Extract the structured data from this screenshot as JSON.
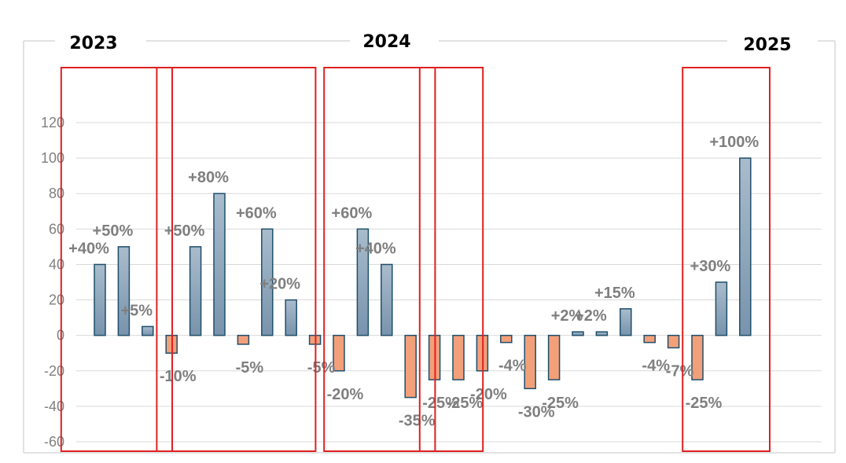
{
  "chart_data": {
    "type": "bar",
    "title": "",
    "xlabel": "",
    "ylabel": "",
    "ylim": [
      -60,
      120
    ],
    "yticks": [
      120,
      100,
      80,
      60,
      40,
      20,
      0,
      -20,
      -40,
      -60
    ],
    "grid": true,
    "values": [
      40,
      50,
      5,
      -10,
      50,
      80,
      -5,
      60,
      20,
      -5,
      -20,
      60,
      40,
      -35,
      -25,
      -25,
      -20,
      -4,
      -30,
      -25,
      2,
      2,
      15,
      -4,
      -7,
      -25,
      30,
      100
    ],
    "labels": [
      "+40%",
      "+50%",
      "+5%",
      "-10%",
      "+50%",
      "+80%",
      "-5%",
      "+60%",
      "+20%",
      "-5%",
      "-20%",
      "+60%",
      "+40%",
      "-35%",
      "-25%",
      "-25%",
      "-20%",
      "-4%",
      "-30%",
      "-25%",
      "+2%",
      "+2%",
      "+15%",
      "-4%",
      "-7%",
      "-25%",
      "+30%",
      "+100%"
    ],
    "year_labels": [
      "2023",
      "2024",
      "2025"
    ],
    "highlight_groups": [
      [
        0,
        2
      ],
      [
        4,
        8
      ],
      [
        11,
        13
      ],
      [
        15,
        15
      ],
      [
        26,
        27
      ]
    ]
  },
  "colors": {
    "positive_fill": "#8fa8be",
    "positive_stroke": "#1f4e6b",
    "negative_fill": "#f2a07a",
    "negative_stroke": "#1f4e6b",
    "highlight": "#e02020",
    "grid": "#d9d9d9",
    "label": "#7f7f7f"
  }
}
